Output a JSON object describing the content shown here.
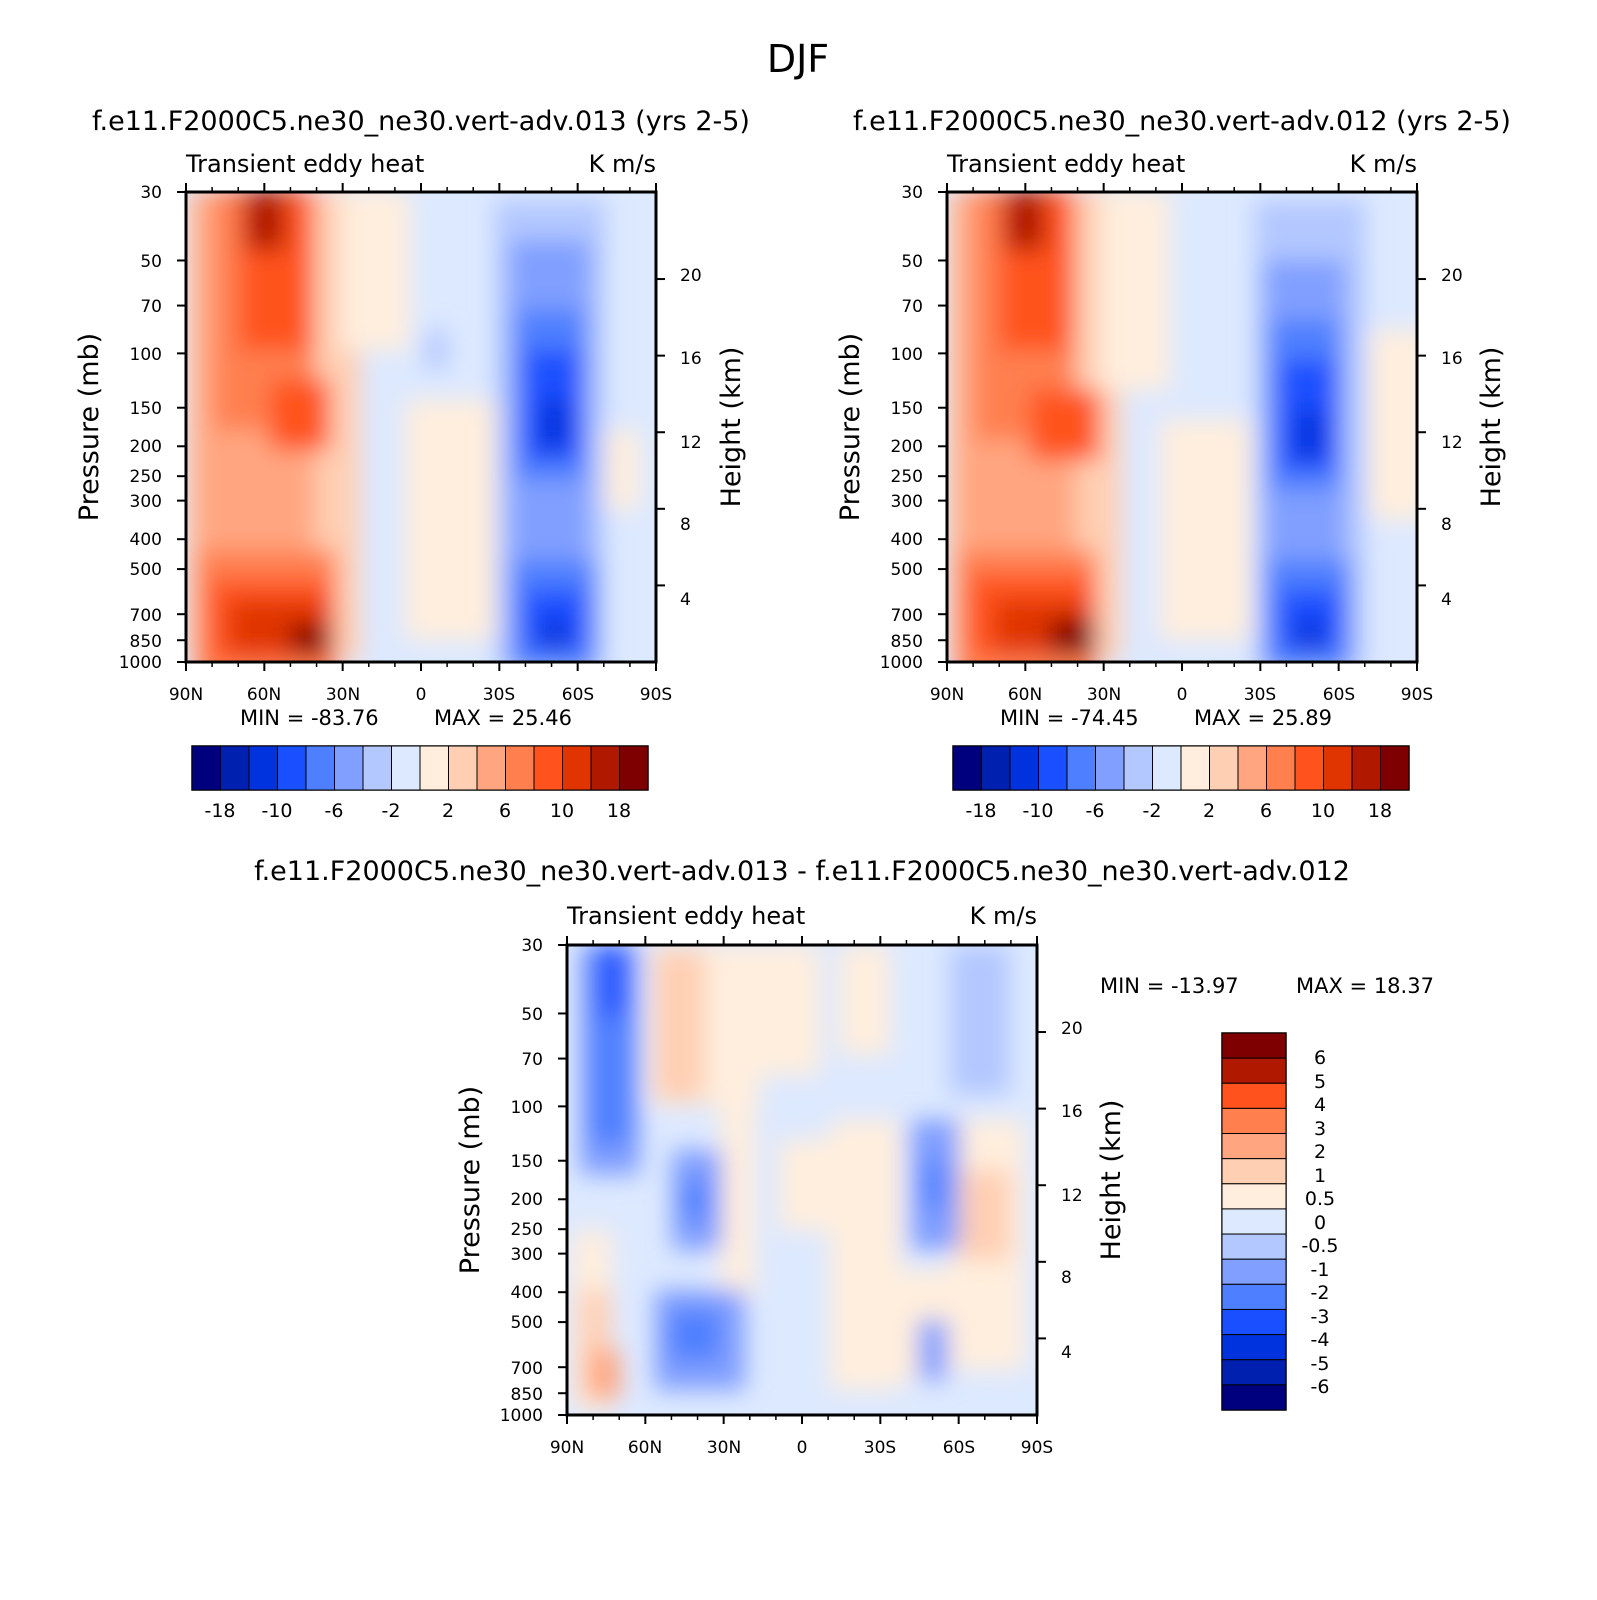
{
  "figure": {
    "title": "DJF"
  },
  "colors": {
    "palette_18": [
      "#00007f",
      "#0020b0",
      "#0033dd",
      "#1a4fff",
      "#4d7fff",
      "#809fff",
      "#b3c8ff",
      "#dde9ff",
      "#ffeedd",
      "#ffcfb3",
      "#ffa680",
      "#ff7f4f",
      "#ff521c",
      "#e03500",
      "#b01800",
      "#7f0000"
    ],
    "palette_diff": [
      "#00007f",
      "#0020b0",
      "#0033dd",
      "#1a4fff",
      "#4d7fff",
      "#809fff",
      "#b3c8ff",
      "#dde9ff",
      "#ffeedd",
      "#ffcfb3",
      "#ffa680",
      "#ff7f4f",
      "#ff521c",
      "#b01800",
      "#7f0000"
    ]
  },
  "chart_data": [
    {
      "type": "heatmap",
      "panel": "top-left",
      "title": "f.e11.F2000C5.ne30_ne30.vert-adv.013 (yrs 2-5)",
      "subtitle_left": "Transient eddy heat",
      "subtitle_right": "K m/s",
      "ylabel": "Pressure (mb)",
      "ylabel_right": "Height (km)",
      "xticks": [
        "90N",
        "60N",
        "30N",
        "0",
        "30S",
        "60S",
        "90S"
      ],
      "yticks": [
        "30",
        "50",
        "70",
        "100",
        "150",
        "200",
        "250",
        "300",
        "400",
        "500",
        "700",
        "850",
        "1000"
      ],
      "yticks_right": [
        "20",
        "16",
        "12",
        "8",
        "4"
      ],
      "min_label": "MIN = -83.76",
      "max_label": "MAX = 25.46",
      "min": -83.76,
      "max": 25.46,
      "colorbar_labels": [
        "-18",
        "-10",
        "-6",
        "-2",
        "2",
        "6",
        "10",
        "18"
      ],
      "features": [
        {
          "kind": "max",
          "lat": 60,
          "p": 35,
          "value": 25
        },
        {
          "kind": "max",
          "lat": 55,
          "p": 170,
          "value": 12
        },
        {
          "kind": "max",
          "lat": 50,
          "p": 880,
          "value": 20
        },
        {
          "kind": "min",
          "lat": -50,
          "p": 180,
          "value": -14
        },
        {
          "kind": "min",
          "lat": -50,
          "p": 860,
          "value": -14
        }
      ]
    },
    {
      "type": "heatmap",
      "panel": "top-right",
      "title": "f.e11.F2000C5.ne30_ne30.vert-adv.012 (yrs 2-5)",
      "subtitle_left": "Transient eddy heat",
      "subtitle_right": "K m/s",
      "ylabel": "Pressure (mb)",
      "ylabel_right": "Height (km)",
      "xticks": [
        "90N",
        "60N",
        "30N",
        "0",
        "30S",
        "60S",
        "90S"
      ],
      "yticks": [
        "30",
        "50",
        "70",
        "100",
        "150",
        "200",
        "250",
        "300",
        "400",
        "500",
        "700",
        "850",
        "1000"
      ],
      "yticks_right": [
        "20",
        "16",
        "12",
        "8",
        "4"
      ],
      "min_label": "MIN = -74.45",
      "max_label": "MAX = 25.89",
      "min": -74.45,
      "max": 25.89,
      "colorbar_labels": [
        "-18",
        "-10",
        "-6",
        "-2",
        "2",
        "6",
        "10",
        "18"
      ],
      "features": [
        {
          "kind": "max",
          "lat": 60,
          "p": 35,
          "value": 25
        },
        {
          "kind": "max",
          "lat": 52,
          "p": 180,
          "value": 12
        },
        {
          "kind": "max",
          "lat": 48,
          "p": 880,
          "value": 20
        },
        {
          "kind": "min",
          "lat": -48,
          "p": 190,
          "value": -13
        },
        {
          "kind": "min",
          "lat": -48,
          "p": 860,
          "value": -12
        }
      ]
    },
    {
      "type": "heatmap",
      "panel": "bottom",
      "title": "f.e11.F2000C5.ne30_ne30.vert-adv.013 - f.e11.F2000C5.ne30_ne30.vert-adv.012",
      "subtitle_left": "Transient eddy heat",
      "subtitle_right": "K m/s",
      "ylabel": "Pressure (mb)",
      "ylabel_right": "Height (km)",
      "xticks": [
        "90N",
        "60N",
        "30N",
        "0",
        "30S",
        "60S",
        "90S"
      ],
      "yticks": [
        "30",
        "50",
        "70",
        "100",
        "150",
        "200",
        "250",
        "300",
        "400",
        "500",
        "700",
        "850",
        "1000"
      ],
      "yticks_right": [
        "20",
        "16",
        "12",
        "8",
        "4"
      ],
      "min_label": "MIN = -13.97",
      "max_label": "MAX = 18.37",
      "min": -13.97,
      "max": 18.37,
      "colorbar_labels": [
        "6",
        "5",
        "4",
        "3",
        "2",
        "1",
        "0.5",
        "0",
        "-0.5",
        "-1",
        "-2",
        "-3",
        "-4",
        "-5",
        "-6"
      ],
      "features": [
        {
          "kind": "min",
          "lat": 73,
          "p": 60,
          "value": -4
        },
        {
          "kind": "max",
          "lat": 52,
          "p": 60,
          "value": 1.5
        },
        {
          "kind": "min",
          "lat": 42,
          "p": 210,
          "value": -3
        },
        {
          "kind": "max",
          "lat": 30,
          "p": 150,
          "value": 0.8
        },
        {
          "kind": "min",
          "lat": 40,
          "p": 700,
          "value": -2.5
        },
        {
          "kind": "max",
          "lat": 75,
          "p": 700,
          "value": 1.5
        },
        {
          "kind": "min",
          "lat": -50,
          "p": 60,
          "value": -1
        },
        {
          "kind": "min",
          "lat": -52,
          "p": 220,
          "value": -2
        },
        {
          "kind": "max",
          "lat": -72,
          "p": 220,
          "value": 0.8
        }
      ]
    }
  ]
}
